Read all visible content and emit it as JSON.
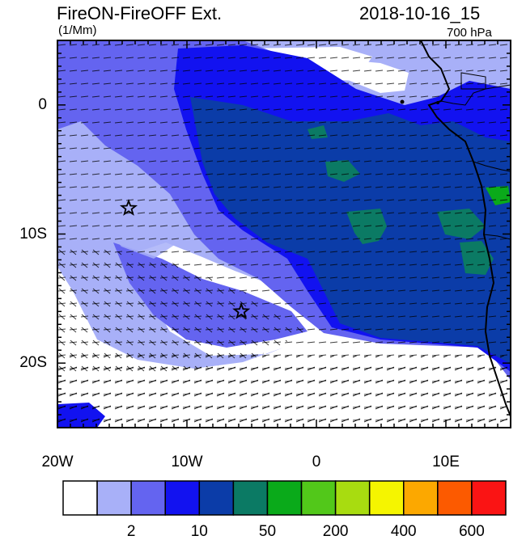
{
  "header": {
    "left_title": "FireON-FireOFF Ext.",
    "date": "2018-10-16_15",
    "units": "(1/Mm)",
    "level": "700 hPa"
  },
  "map": {
    "lon_range": [
      -20,
      15
    ],
    "lat_range": [
      -25,
      5
    ],
    "x_ticks": [
      {
        "lon": -20,
        "label": "20W"
      },
      {
        "lon": -10,
        "label": "10W"
      },
      {
        "lon": 0,
        "label": "0"
      },
      {
        "lon": 10,
        "label": "10E"
      }
    ],
    "y_ticks": [
      {
        "lat": 0,
        "label": "0"
      },
      {
        "lat": -10,
        "label": "10S"
      },
      {
        "lat": -20,
        "label": "20S"
      }
    ],
    "stars": [
      {
        "lon": -14.5,
        "lat": -8.0
      },
      {
        "lon": -5.8,
        "lat": -16.0
      }
    ],
    "features": [
      "coastline",
      "country-borders",
      "wind-vectors"
    ]
  },
  "colorbar": {
    "colors": [
      "#ffffff",
      "#a8b0f8",
      "#6464f0",
      "#1212f0",
      "#0b3ca8",
      "#0b7a64",
      "#0aaa1a",
      "#52c81a",
      "#a8dc10",
      "#f5f500",
      "#fca800",
      "#fc5a00",
      "#fa1414"
    ],
    "labels": [
      {
        "after_box": 1,
        "text": "2"
      },
      {
        "after_box": 3,
        "text": "10"
      },
      {
        "after_box": 5,
        "text": "50"
      },
      {
        "after_box": 7,
        "text": "200"
      },
      {
        "after_box": 9,
        "text": "400"
      },
      {
        "after_box": 11,
        "text": "600"
      }
    ]
  }
}
